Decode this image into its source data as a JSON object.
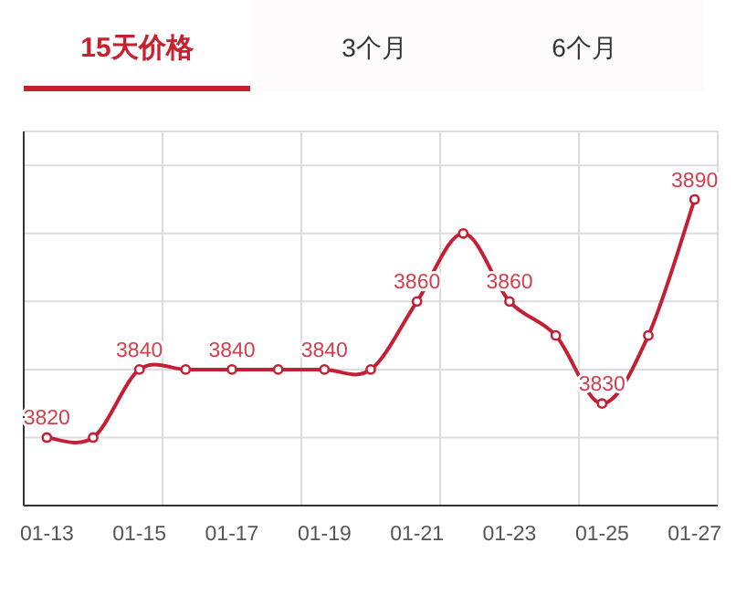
{
  "chart_data": {
    "type": "line",
    "title": "15天价格",
    "annotations": [
      "3个月",
      "6个月"
    ],
    "categories": [
      "01-13",
      null,
      "01-15",
      null,
      "01-17",
      null,
      "01-19",
      null,
      "01-21",
      null,
      "01-23",
      null,
      "01-25",
      null,
      "01-27"
    ],
    "series": [
      {
        "color": "#c41f34",
        "values": [
          3820,
          3820,
          3840,
          3840,
          3840,
          3840,
          3840,
          3840,
          3860,
          3880,
          3860,
          3850,
          3830,
          3850,
          3890
        ],
        "value_labels": [
          "3820",
          null,
          "3840",
          null,
          "3840",
          null,
          "3840",
          null,
          "3860",
          null,
          "3860",
          null,
          "3830",
          null,
          "3890"
        ]
      }
    ],
    "ylim": [
      3800,
      3910
    ],
    "yticks": [
      {
        "value": 3820,
        "label": null
      },
      {
        "value": 3840,
        "label": null
      },
      {
        "value": 3860,
        "label": null
      },
      {
        "value": 3880,
        "label": null
      },
      {
        "value": 3900,
        "label": null
      }
    ],
    "tick_labels": "x",
    "grid": true,
    "marker": "circle",
    "line_style": "solid"
  }
}
